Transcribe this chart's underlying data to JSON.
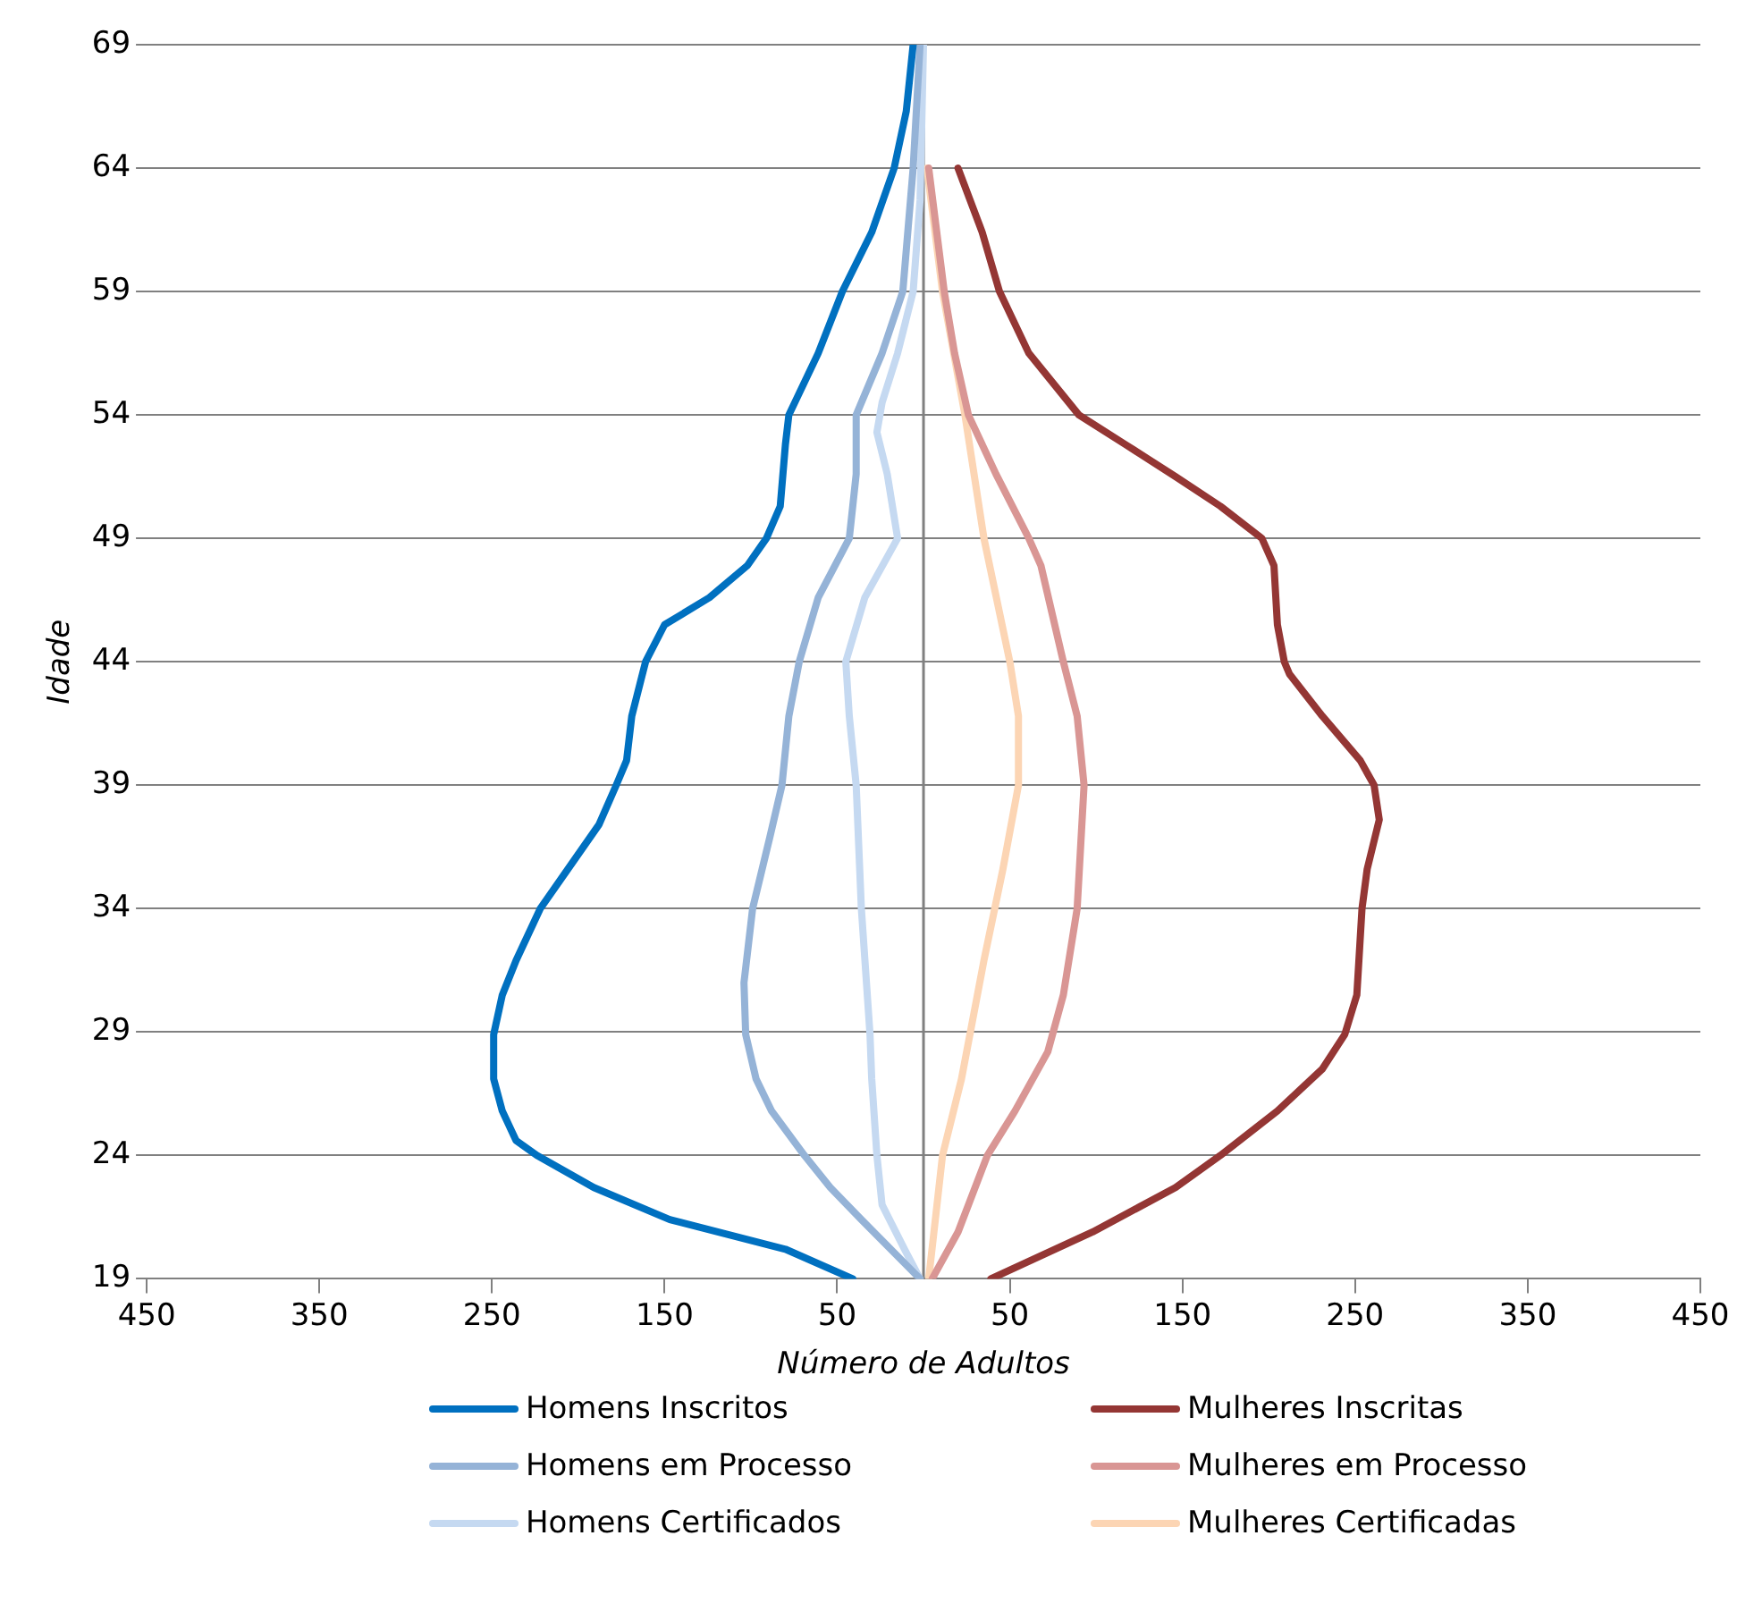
{
  "chart_data": {
    "type": "line",
    "xlabel": "Número de Adultos",
    "ylabel": "Idade",
    "xlim": [
      -450,
      450
    ],
    "xticks": [
      {
        "value": -450,
        "label": "450"
      },
      {
        "value": -350,
        "label": "350"
      },
      {
        "value": -250,
        "label": "250"
      },
      {
        "value": -150,
        "label": "150"
      },
      {
        "value": -50,
        "label": "50"
      },
      50,
      150,
      250,
      350,
      450
    ],
    "ylim": [
      19,
      69
    ],
    "yticks": [
      19,
      24,
      29,
      34,
      39,
      44,
      49,
      54,
      59,
      64,
      69
    ],
    "grid": "y",
    "legend": "bottom",
    "marker": "none",
    "line_style": "solid",
    "ref_lines": [
      {
        "axis": "x",
        "value": 0,
        "color": "#808080"
      }
    ],
    "series": [
      {
        "name": "Homens Inscritos",
        "color": "#0070c0",
        "x": [
          -41,
          -80,
          -147,
          -191,
          -224,
          -236,
          -244,
          -249,
          -249,
          -244,
          -236,
          -222,
          -206,
          -188,
          -178,
          -172,
          -169,
          -161,
          -150,
          -124,
          -102,
          -91,
          -83,
          -80,
          -78,
          -61,
          -47,
          -30,
          -17,
          -10,
          -6
        ],
        "values": [
          19,
          20.2,
          21.4,
          22.7,
          24,
          24.6,
          25.8,
          27.1,
          28.9,
          30.5,
          31.9,
          34,
          35.6,
          37.4,
          39,
          40,
          41.8,
          44,
          45.5,
          46.6,
          47.9,
          49,
          50.3,
          52.8,
          54,
          56.5,
          59,
          61.4,
          64,
          66.3,
          69
        ]
      },
      {
        "name": "Mulheres Inscritas",
        "color": "#943634",
        "x": [
          39,
          98,
          146,
          172,
          205,
          231,
          244,
          251,
          254,
          257,
          264,
          261,
          253,
          231,
          212,
          209,
          205,
          203,
          196,
          172,
          146,
          117,
          90,
          61,
          44,
          34,
          20
        ],
        "values": [
          19,
          20.9,
          22.7,
          24,
          25.8,
          27.5,
          28.9,
          30.5,
          34,
          35.6,
          37.6,
          39,
          40,
          41.8,
          43.5,
          44,
          45.5,
          47.9,
          49,
          50.3,
          51.5,
          52.8,
          54,
          56.5,
          59,
          61.4,
          64
        ]
      },
      {
        "name": "Homens em Processo",
        "color": "#95b3d7",
        "x": [
          -2,
          -36,
          -54,
          -69,
          -88,
          -97,
          -103,
          -104,
          -99,
          -89,
          -82,
          -78,
          -72,
          -61,
          -43,
          -39,
          -39,
          -24,
          -12,
          -6,
          -2
        ],
        "values": [
          19,
          21.4,
          22.7,
          24,
          25.8,
          27.1,
          28.9,
          31,
          34,
          36.9,
          39,
          41.8,
          44,
          46.6,
          49,
          51.6,
          54,
          56.5,
          59,
          64,
          69
        ]
      },
      {
        "name": "Mulheres em Processo",
        "color": "#d99694",
        "x": [
          5,
          20,
          37,
          53,
          72,
          81,
          89,
          93,
          89,
          81,
          68,
          61,
          42,
          26,
          18,
          12,
          3
        ],
        "values": [
          19,
          20.9,
          24,
          25.8,
          28.2,
          30.5,
          34,
          39,
          41.8,
          44,
          47.9,
          49,
          51.6,
          54,
          56.5,
          59,
          64
        ]
      },
      {
        "name": "Homens Certificados",
        "color": "#c5d9f1",
        "x": [
          -2,
          -11,
          -24,
          -27,
          -30,
          -31,
          -36,
          -39,
          -43,
          -45,
          -34,
          -15,
          -21,
          -27,
          -24,
          -15,
          -6,
          -2,
          0
        ],
        "values": [
          19,
          20.2,
          22,
          24,
          27.1,
          28.9,
          34,
          39,
          41.8,
          44,
          46.6,
          49,
          51.6,
          53.3,
          54.5,
          56.5,
          59,
          62.7,
          69
        ]
      },
      {
        "name": "Mulheres Certificadas",
        "color": "#fcd5b4",
        "x": [
          3,
          11,
          22,
          35,
          46,
          55,
          55,
          50,
          35,
          24,
          11,
          2
        ],
        "values": [
          19,
          24,
          27.1,
          31.9,
          35.6,
          39,
          41.8,
          44,
          49,
          54,
          59,
          64
        ]
      }
    ]
  }
}
